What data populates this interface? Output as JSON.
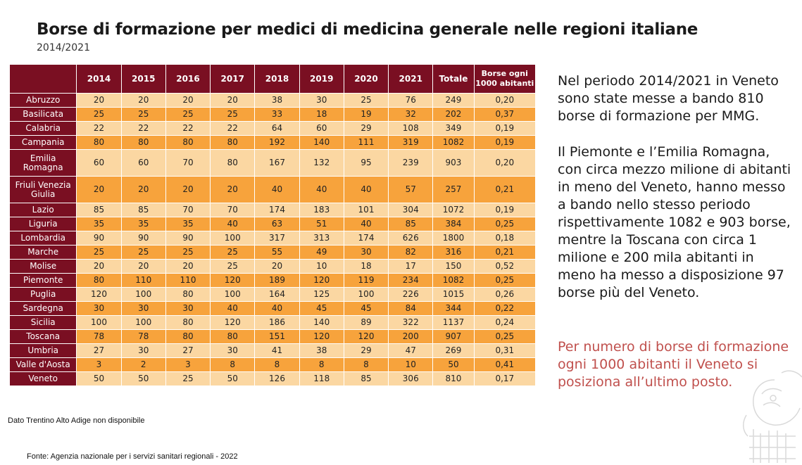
{
  "title": "Borse di formazione per medici di medicina generale nelle regioni italiane",
  "subtitle": "2014/2021",
  "table": {
    "headers": [
      "",
      "2014",
      "2015",
      "2016",
      "2017",
      "2018",
      "2019",
      "2020",
      "2021",
      "Totale",
      "Borse ogni 1000 abitanti"
    ],
    "rows": [
      [
        "Abruzzo",
        "20",
        "20",
        "20",
        "20",
        "38",
        "30",
        "25",
        "76",
        "249",
        "0,20"
      ],
      [
        "Basilicata",
        "25",
        "25",
        "25",
        "25",
        "33",
        "18",
        "19",
        "32",
        "202",
        "0,37"
      ],
      [
        "Calabria",
        "22",
        "22",
        "22",
        "22",
        "64",
        "60",
        "29",
        "108",
        "349",
        "0,19"
      ],
      [
        "Campania",
        "80",
        "80",
        "80",
        "80",
        "192",
        "140",
        "111",
        "319",
        "1082",
        "0,19"
      ],
      [
        "Emilia Romagna",
        "60",
        "60",
        "70",
        "80",
        "167",
        "132",
        "95",
        "239",
        "903",
        "0,20"
      ],
      [
        "Friuli Venezia Giulia",
        "20",
        "20",
        "20",
        "20",
        "40",
        "40",
        "40",
        "57",
        "257",
        "0,21"
      ],
      [
        "Lazio",
        "85",
        "85",
        "70",
        "70",
        "174",
        "183",
        "101",
        "304",
        "1072",
        "0,19"
      ],
      [
        "Liguria",
        "35",
        "35",
        "35",
        "40",
        "63",
        "51",
        "40",
        "85",
        "384",
        "0,25"
      ],
      [
        "Lombardia",
        "90",
        "90",
        "90",
        "100",
        "317",
        "313",
        "174",
        "626",
        "1800",
        "0,18"
      ],
      [
        "Marche",
        "25",
        "25",
        "25",
        "25",
        "55",
        "49",
        "30",
        "82",
        "316",
        "0,21"
      ],
      [
        "Molise",
        "20",
        "20",
        "20",
        "25",
        "20",
        "10",
        "18",
        "17",
        "150",
        "0,52"
      ],
      [
        "Piemonte",
        "80",
        "110",
        "110",
        "120",
        "189",
        "120",
        "119",
        "234",
        "1082",
        "0,25"
      ],
      [
        "Puglia",
        "120",
        "100",
        "80",
        "100",
        "164",
        "125",
        "100",
        "226",
        "1015",
        "0,26"
      ],
      [
        "Sardegna",
        "30",
        "30",
        "30",
        "40",
        "40",
        "45",
        "45",
        "84",
        "344",
        "0,22"
      ],
      [
        "Sicilia",
        "100",
        "100",
        "80",
        "120",
        "186",
        "140",
        "89",
        "322",
        "1137",
        "0,24"
      ],
      [
        "Toscana",
        "78",
        "78",
        "80",
        "80",
        "151",
        "120",
        "120",
        "200",
        "907",
        "0,25"
      ],
      [
        "Umbria",
        "27",
        "30",
        "27",
        "30",
        "41",
        "38",
        "29",
        "47",
        "269",
        "0,31"
      ],
      [
        "Valle d'Aosta",
        "3",
        "2",
        "3",
        "8",
        "8",
        "8",
        "8",
        "10",
        "50",
        "0,41"
      ],
      [
        "Veneto",
        "50",
        "50",
        "25",
        "50",
        "126",
        "118",
        "85",
        "306",
        "810",
        "0,17"
      ]
    ]
  },
  "side_text": {
    "p1": "Nel periodo 2014/2021 in Veneto sono state messe a bando 810 borse di formazione per MMG.",
    "p2": "Il Piemonte e l’Emilia Romagna, con circa mezzo milione di abitanti in meno del Veneto, hanno messo a bando nello stesso periodo rispettivamente 1082 e 903 borse, mentre la Toscana con circa 1 milione e 200 mila abitanti in meno ha messo a disposizione 97 borse più del Veneto.",
    "p3": "Per numero di borse di formazione ogni 1000 abitanti il Veneto si posiziona all’ultimo posto."
  },
  "note": "Dato Trentino Alto Adige non disponibile",
  "source": "Fonte: Agenzia nazionale per i servizi sanitari regionali - 2022",
  "colors": {
    "header_bg": "#7a0f22",
    "row_light": "#fbd7a2",
    "row_dark": "#f7a33c",
    "highlight_text": "#c0504d"
  }
}
